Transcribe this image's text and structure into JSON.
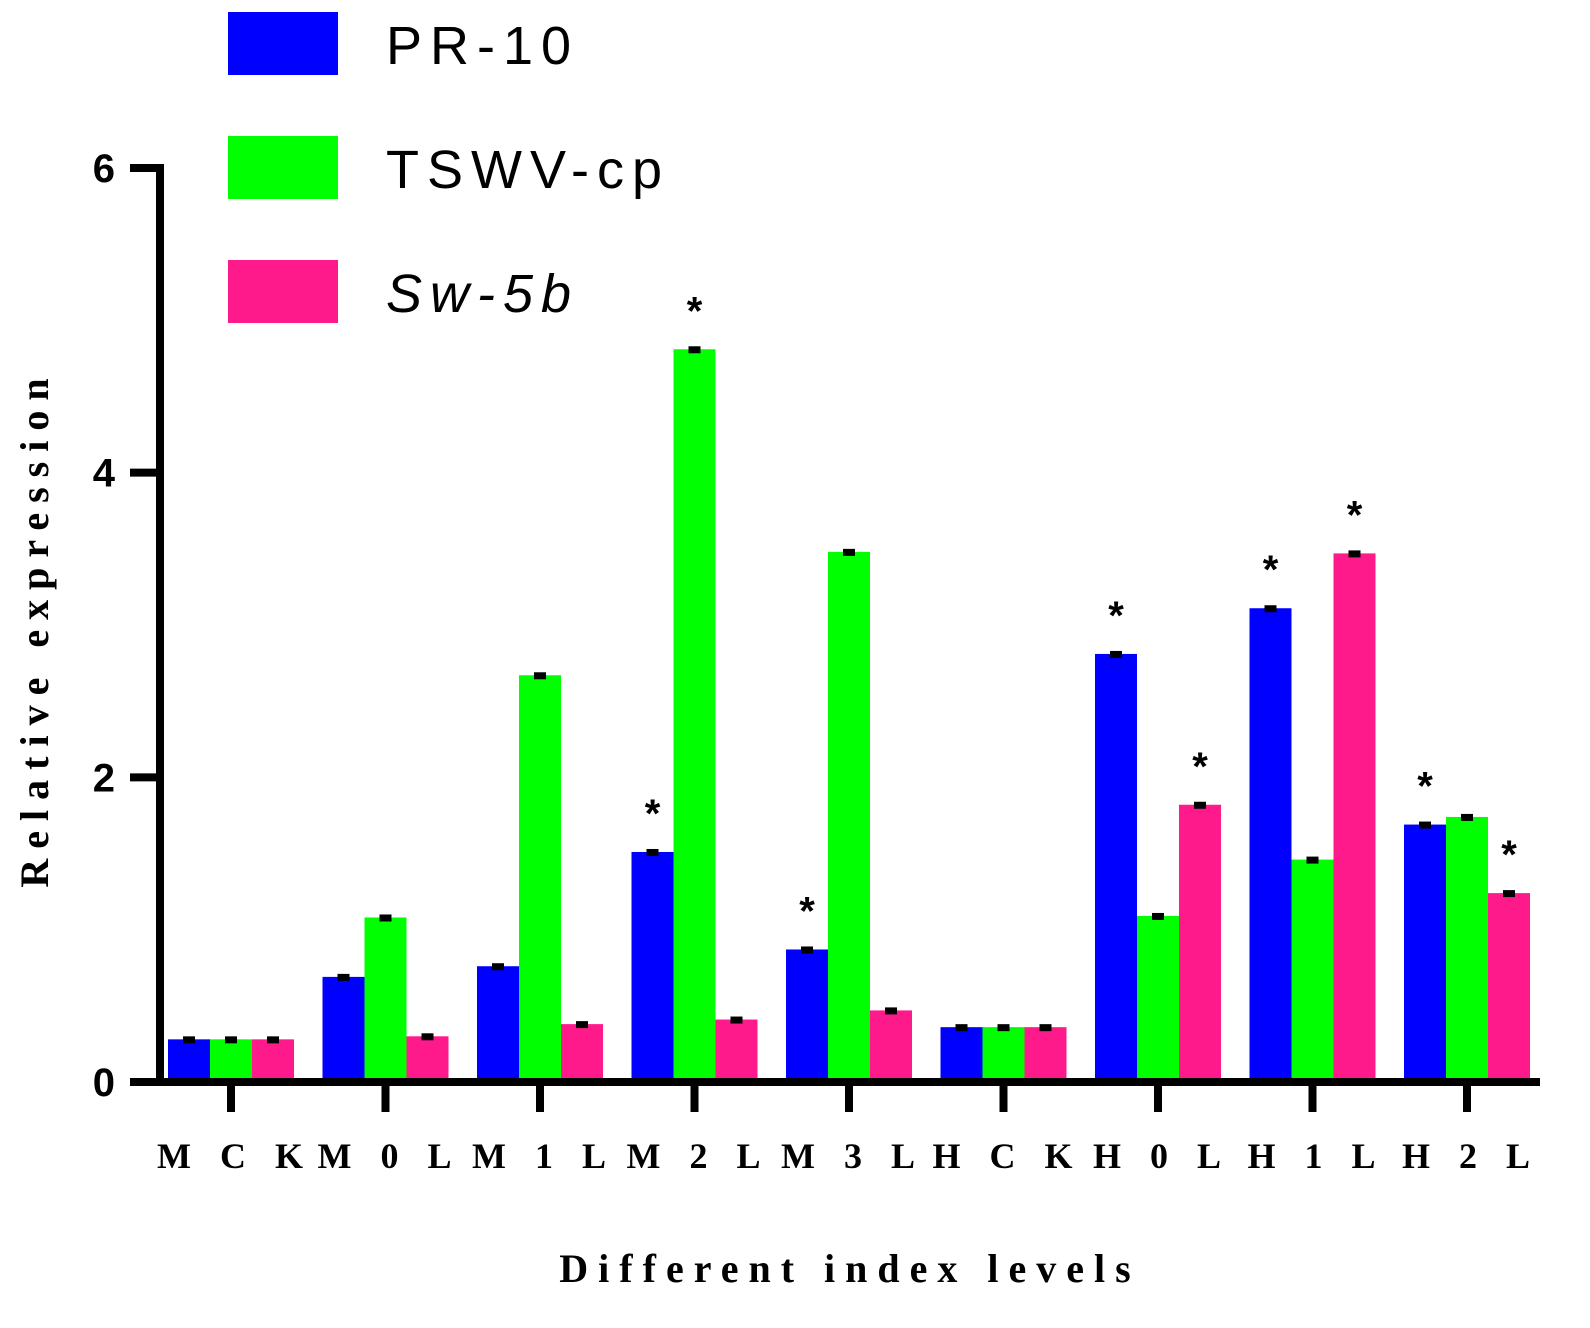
{
  "chart_data": {
    "type": "bar",
    "title": "",
    "xlabel": "Different index levels",
    "ylabel": "Relative expression",
    "ylim": [
      0,
      6
    ],
    "yticks": [
      "0",
      "2",
      "4",
      "6"
    ],
    "categories": [
      "M C K",
      "M 0 L",
      "M 1 L",
      "M 2 L",
      "M 3 L",
      "H C K",
      "H 0 L",
      "H 1 L",
      "H 2 L"
    ],
    "series": [
      {
        "name": "PR-10",
        "italic": false,
        "color": "#0000ff",
        "values": [
          0.28,
          0.69,
          0.76,
          1.51,
          0.87,
          0.36,
          2.81,
          3.11,
          1.69
        ],
        "significant": [
          false,
          false,
          false,
          true,
          true,
          false,
          true,
          true,
          true
        ]
      },
      {
        "name": "TSWV-cp",
        "italic": false,
        "color": "#00ff00",
        "values": [
          0.28,
          1.08,
          2.67,
          4.81,
          3.48,
          0.36,
          1.09,
          1.46,
          1.74
        ],
        "significant": [
          false,
          false,
          false,
          true,
          false,
          false,
          false,
          false,
          false
        ]
      },
      {
        "name": "Sw-5b",
        "italic": true,
        "color": "#ff1a8c",
        "values": [
          0.28,
          0.3,
          0.38,
          0.41,
          0.47,
          0.36,
          1.82,
          3.47,
          1.24
        ],
        "significant": [
          false,
          false,
          false,
          false,
          false,
          false,
          true,
          true,
          true
        ]
      }
    ],
    "significance_marker": "*",
    "legend_position": "top-left"
  }
}
